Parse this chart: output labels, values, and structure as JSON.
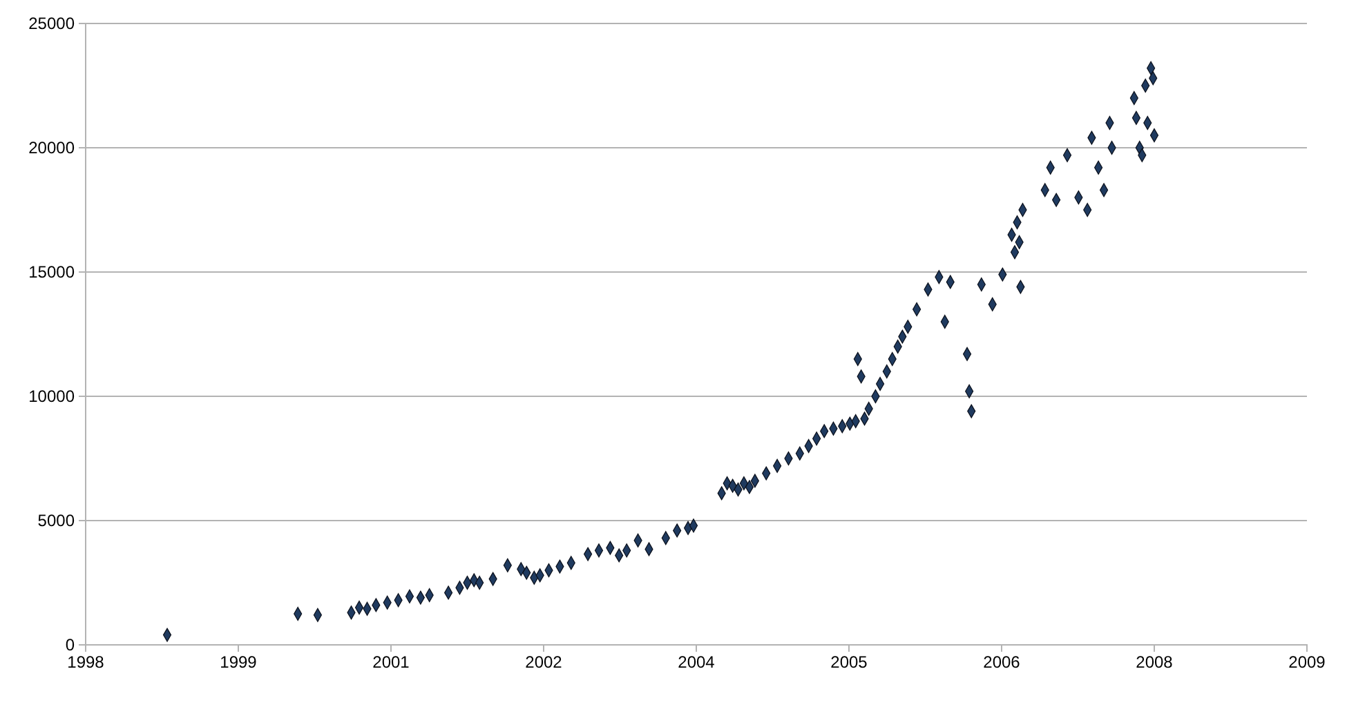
{
  "chart_data": {
    "type": "scatter",
    "marker": "diamond",
    "grid": "y",
    "xlim": [
      "1998-08-07",
      "2009-07-20"
    ],
    "xticks": [
      {
        "value": "1998-08-07",
        "label": "1998"
      },
      {
        "value": "1999-12-20",
        "label": "1999"
      },
      {
        "value": "2001-05-03",
        "label": "2001"
      },
      {
        "value": "2002-09-15",
        "label": "2002"
      },
      {
        "value": "2004-01-28",
        "label": "2004"
      },
      {
        "value": "2005-06-11",
        "label": "2005"
      },
      {
        "value": "2006-10-24",
        "label": "2006"
      },
      {
        "value": "2008-03-07",
        "label": "2008"
      },
      {
        "value": "2009-07-20",
        "label": "2009"
      }
    ],
    "ylim": [
      0,
      25000
    ],
    "yticks": [
      0,
      5000,
      10000,
      15000,
      20000,
      25000
    ],
    "series": [
      {
        "color": "#1f3a5f",
        "x": [
          "1999-05-01",
          "2000-07-02",
          "2000-09-05",
          "2000-12-24",
          "2001-01-19",
          "2001-02-14",
          "2001-03-15",
          "2001-04-21",
          "2001-05-27",
          "2001-07-03",
          "2001-08-08",
          "2001-09-06",
          "2001-11-07",
          "2001-12-14",
          "2002-01-08",
          "2002-01-30",
          "2002-02-17",
          "2002-04-02",
          "2002-05-20",
          "2002-07-03",
          "2002-07-21",
          "2002-08-15",
          "2002-09-03",
          "2002-10-02",
          "2002-11-07",
          "2002-12-14",
          "2003-02-07",
          "2003-03-15",
          "2003-04-21",
          "2003-05-20",
          "2003-06-14",
          "2003-07-21",
          "2003-08-26",
          "2003-10-20",
          "2003-11-26",
          "2004-01-01",
          "2004-01-19",
          "2004-04-20",
          "2004-05-08",
          "2004-05-26",
          "2004-06-13",
          "2004-07-02",
          "2004-07-20",
          "2004-08-07",
          "2004-09-13",
          "2004-10-19",
          "2004-11-25",
          "2005-01-01",
          "2005-01-30",
          "2005-02-25",
          "2005-03-22",
          "2005-04-21",
          "2005-05-20",
          "2005-06-14",
          "2005-07-03",
          "2005-07-10",
          "2005-07-21",
          "2005-08-01",
          "2005-08-15",
          "2005-09-06",
          "2005-09-21",
          "2005-10-13",
          "2005-10-31",
          "2005-11-18",
          "2005-12-03",
          "2005-12-21",
          "2006-01-19",
          "2006-02-25",
          "2006-04-02",
          "2006-04-21",
          "2006-05-09",
          "2006-07-03",
          "2006-07-10",
          "2006-07-17",
          "2006-08-19",
          "2006-09-24",
          "2006-10-27",
          "2006-11-26",
          "2006-12-14",
          "2007-01-01",
          "2006-12-06",
          "2006-12-25",
          "2006-12-21",
          "2007-03-15",
          "2007-04-02",
          "2007-04-21",
          "2007-05-27",
          "2007-07-03",
          "2007-08-01",
          "2007-08-15",
          "2007-09-06",
          "2007-09-24",
          "2007-10-13",
          "2007-10-20",
          "2008-01-01",
          "2008-01-08",
          "2008-01-19",
          "2008-01-27",
          "2008-02-07",
          "2008-02-14",
          "2008-02-25",
          "2008-03-03",
          "2008-03-07"
        ],
        "values": [
          400,
          1250,
          1200,
          1300,
          1500,
          1450,
          1600,
          1700,
          1800,
          1950,
          1900,
          2000,
          2100,
          2300,
          2500,
          2600,
          2500,
          2650,
          3200,
          3050,
          2900,
          2700,
          2800,
          3000,
          3150,
          3300,
          3650,
          3800,
          3900,
          3600,
          3800,
          4200,
          3850,
          4300,
          4600,
          4700,
          4800,
          6100,
          6500,
          6400,
          6250,
          6500,
          6350,
          6600,
          6900,
          7200,
          7500,
          7700,
          8000,
          8300,
          8600,
          8700,
          8800,
          8900,
          9000,
          11500,
          10800,
          9100,
          9500,
          10000,
          10500,
          11000,
          11500,
          12000,
          12400,
          12800,
          13500,
          14300,
          14800,
          13000,
          14600,
          11700,
          10200,
          9400,
          14500,
          13700,
          14900,
          16500,
          17000,
          17500,
          15800,
          14400,
          16200,
          18300,
          19200,
          17900,
          19700,
          18000,
          17500,
          20400,
          19200,
          18300,
          21000,
          20000,
          22000,
          21200,
          20000,
          19700,
          22500,
          21000,
          23200,
          22800,
          20500
        ]
      }
    ]
  }
}
